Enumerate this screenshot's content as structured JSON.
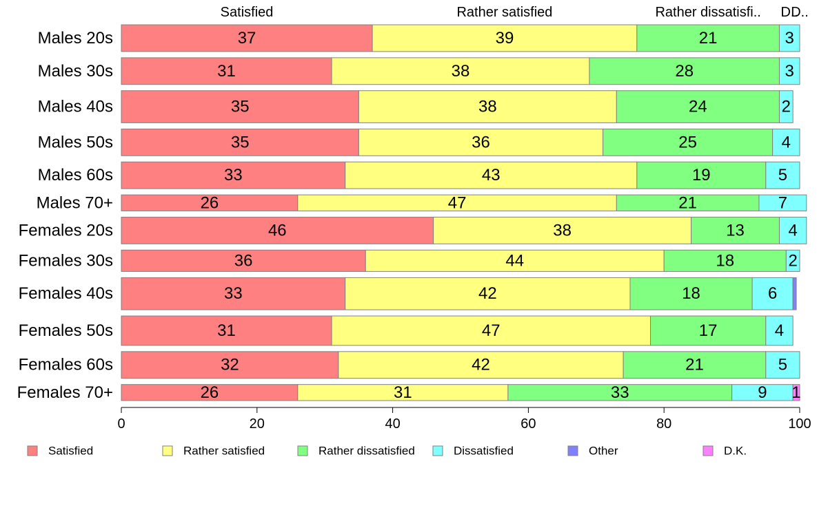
{
  "chart_data": {
    "type": "bar",
    "orientation": "horizontal",
    "stacked": true,
    "categories": [
      "Males 20s",
      "Males 30s",
      "Males 40s",
      "Males 50s",
      "Males 60s",
      "Males 70+",
      "Females 20s",
      "Females 30s",
      "Females 40s",
      "Females 50s",
      "Females 60s",
      "Females 70+"
    ],
    "series": [
      {
        "name": "Satisfied",
        "color": "#ff8080",
        "values": [
          37,
          31,
          35,
          35,
          33,
          26,
          46,
          36,
          33,
          31,
          32,
          26
        ]
      },
      {
        "name": "Rather satisfied",
        "color": "#ffff80",
        "values": [
          39,
          38,
          38,
          36,
          43,
          47,
          38,
          44,
          42,
          47,
          42,
          31
        ]
      },
      {
        "name": "Rather dissatisfied",
        "color": "#80ff80",
        "values": [
          21,
          28,
          24,
          25,
          19,
          21,
          13,
          18,
          18,
          17,
          21,
          33
        ]
      },
      {
        "name": "Dissatisfied",
        "color": "#80ffff",
        "values": [
          3,
          3,
          2,
          4,
          5,
          7,
          4,
          2,
          6,
          4,
          5,
          9
        ]
      },
      {
        "name": "Other",
        "color": "#8080ff",
        "values": [
          0,
          0,
          0,
          0,
          0,
          0,
          0,
          0,
          0.5,
          0,
          0,
          0
        ]
      },
      {
        "name": "D.K.",
        "color": "#ff80ff",
        "values": [
          0,
          0,
          0,
          0,
          0,
          0,
          0,
          0,
          0,
          0,
          0,
          1
        ]
      }
    ],
    "data_labels": [
      [
        "37",
        "39",
        "21",
        "3",
        "",
        ""
      ],
      [
        "31",
        "38",
        "28",
        "3",
        "",
        ""
      ],
      [
        "35",
        "38",
        "24",
        "2",
        "",
        ""
      ],
      [
        "35",
        "36",
        "25",
        "4",
        "",
        ""
      ],
      [
        "33",
        "43",
        "19",
        "5",
        "",
        ""
      ],
      [
        "26",
        "47",
        "21",
        "7",
        "",
        ""
      ],
      [
        "46",
        "38",
        "13",
        "4",
        "",
        ""
      ],
      [
        "36",
        "44",
        "18",
        "2",
        "",
        ""
      ],
      [
        "33",
        "42",
        "18",
        "6",
        "",
        ""
      ],
      [
        "31",
        "47",
        "17",
        "4",
        "",
        ""
      ],
      [
        "32",
        "42",
        "21",
        "5",
        "",
        ""
      ],
      [
        "26",
        "31",
        "33",
        "9",
        "",
        "1"
      ]
    ],
    "top_labels": [
      "Satisfied",
      "Rather satisfied",
      "Rather dissatisfi..",
      "D..",
      "D.."
    ],
    "x_ticks": [
      "0",
      "20",
      "40",
      "60",
      "80",
      "100"
    ],
    "xlim": [
      0,
      100
    ],
    "row_weights": [
      1,
      1,
      1.2,
      1,
      1,
      0.6,
      1,
      0.8,
      1.2,
      1.1,
      1,
      0.6
    ],
    "grid": false,
    "legend_position": "bottom",
    "title": "",
    "xlabel": "",
    "ylabel": ""
  }
}
